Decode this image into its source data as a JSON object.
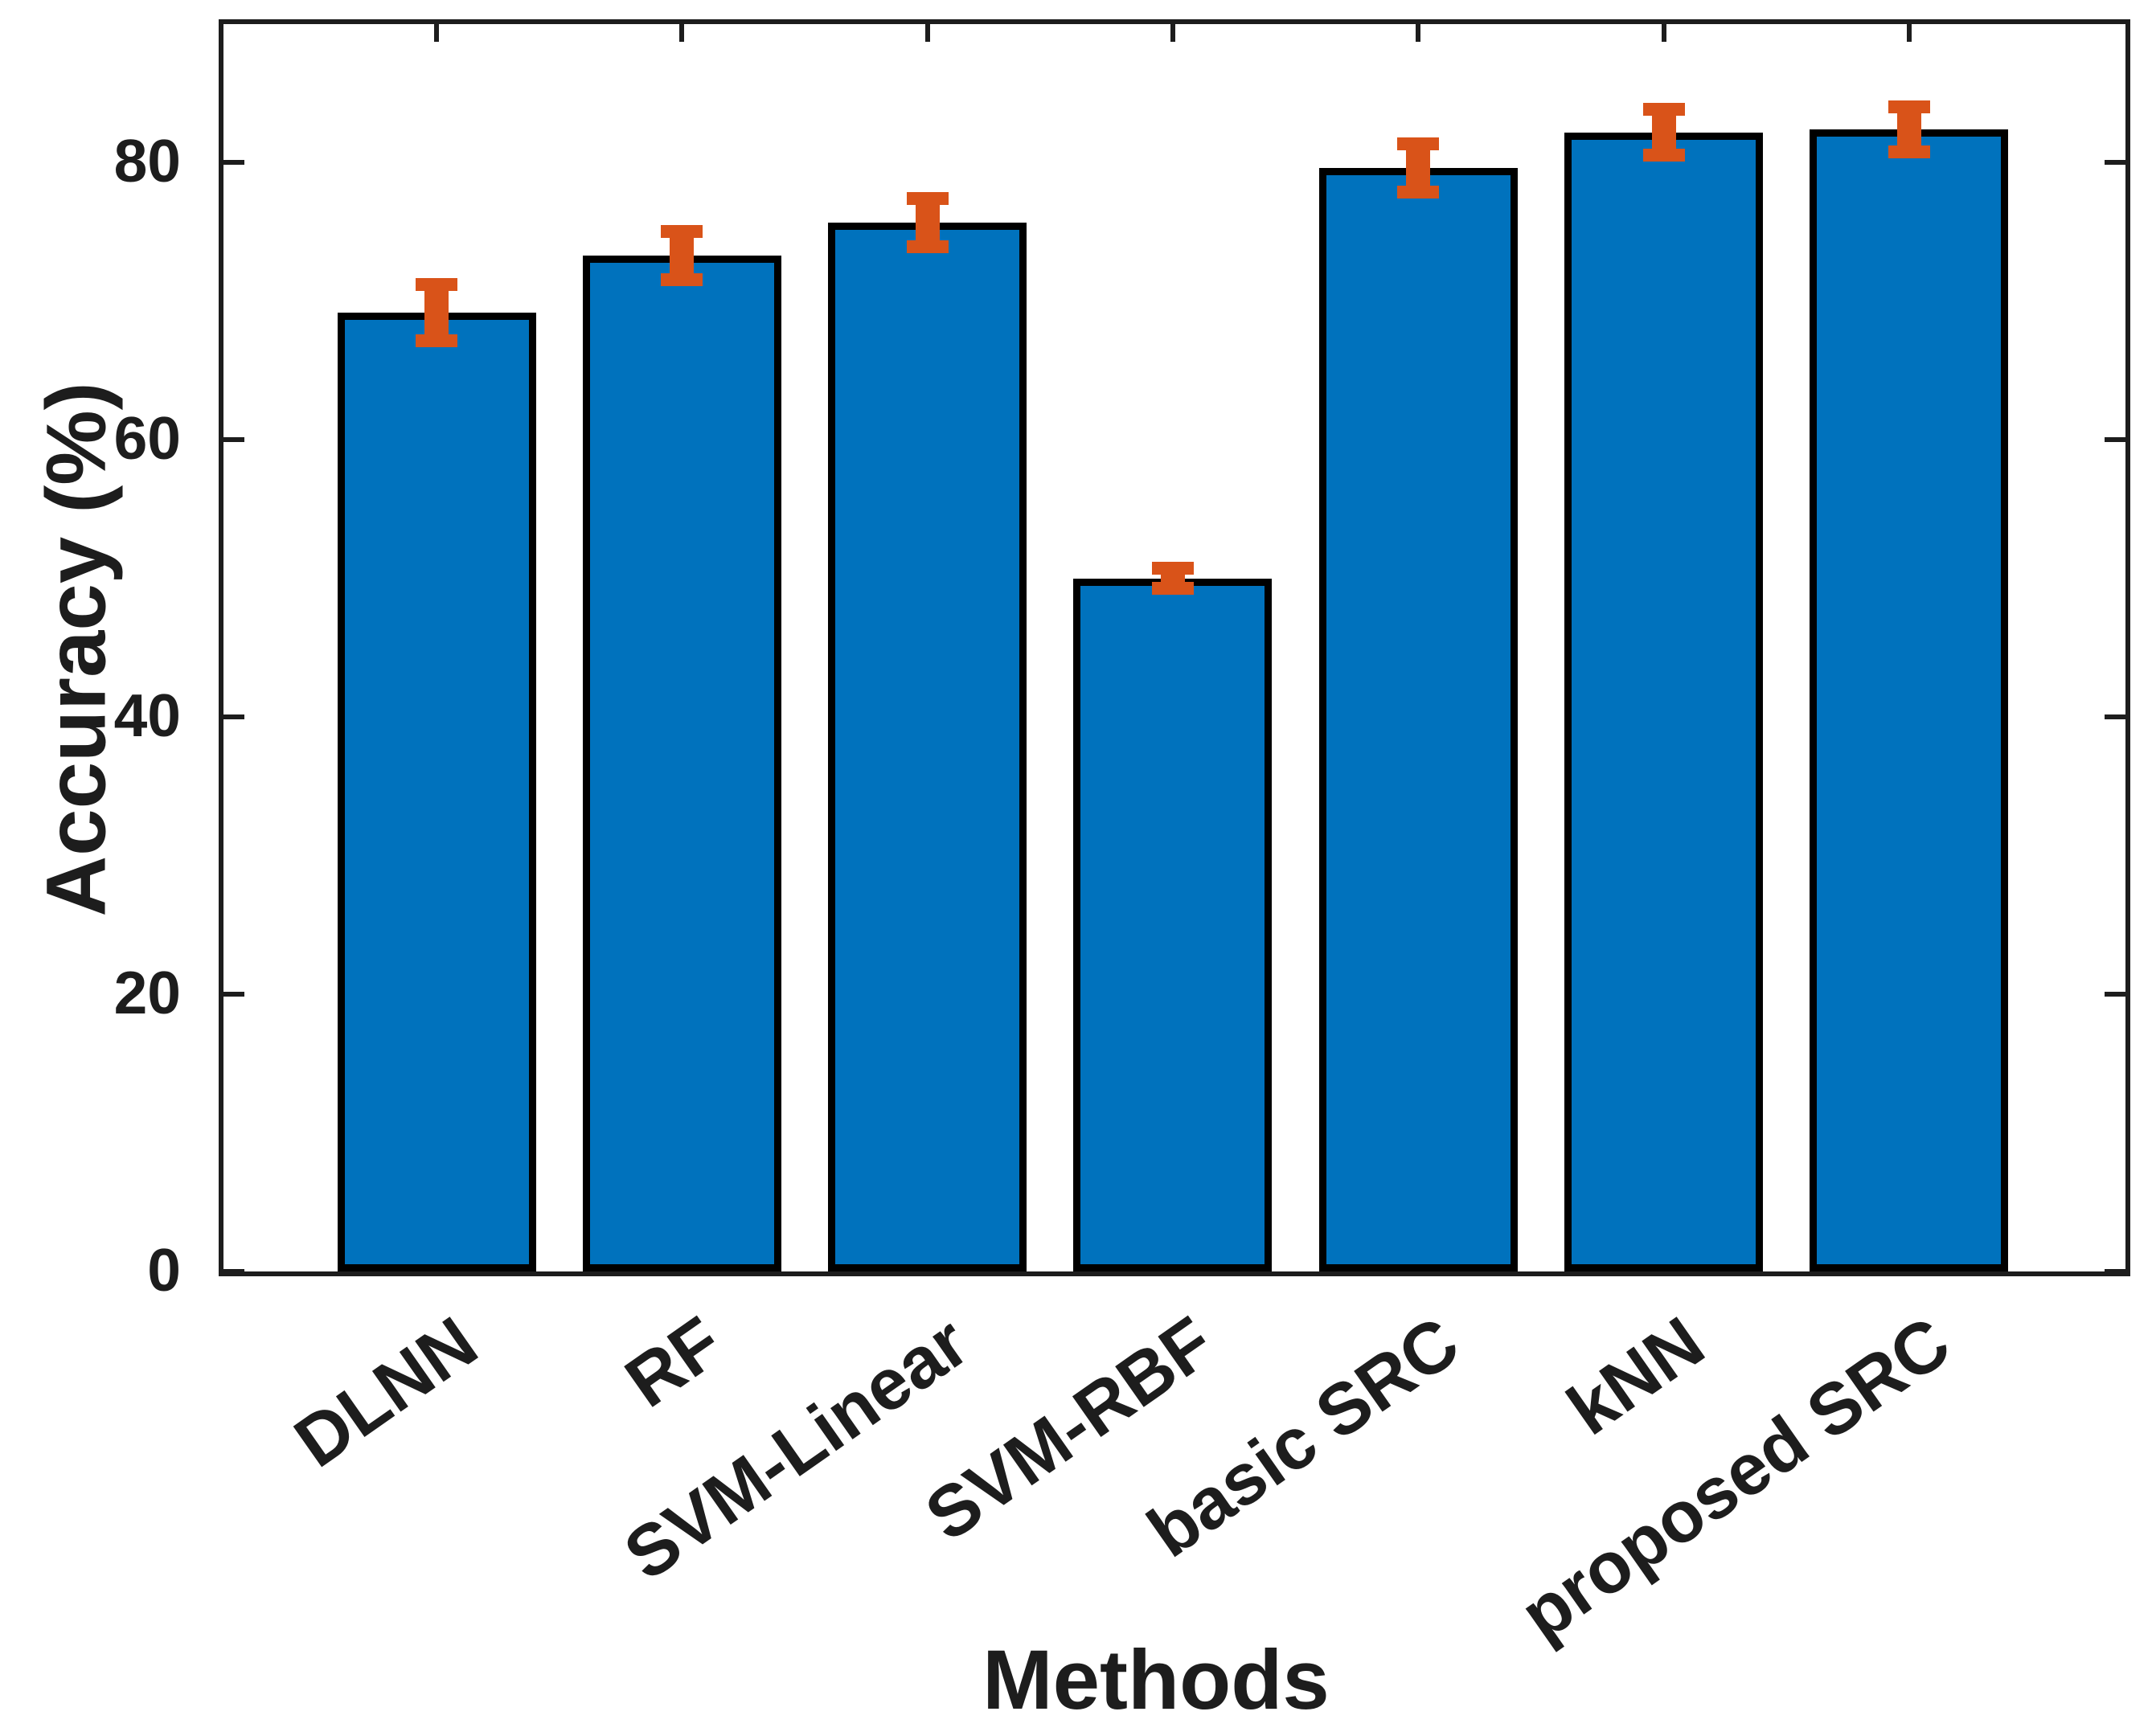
{
  "figure": {
    "background": "#ffffff"
  },
  "chart_data": {
    "type": "bar",
    "title": "",
    "xlabel": "Methods",
    "ylabel": "Accuracy (%)",
    "categories": [
      "DLNN",
      "RF",
      "SVM-Linear",
      "SVM-RBF",
      "basic SRC",
      "kNN",
      "proposed SRC"
    ],
    "values": [
      69.2,
      73.3,
      75.7,
      50.0,
      79.6,
      82.2,
      82.4
    ],
    "errors": [
      2.5,
      2.2,
      2.2,
      1.2,
      2.2,
      2.1,
      2.1
    ],
    "error_style": "both-ends-with-caps",
    "ylim": [
      0,
      90
    ],
    "yticks": [
      0,
      20,
      40,
      60,
      80
    ],
    "grid": false,
    "legend": null,
    "box": true,
    "tick_direction": "in",
    "bar_color": "#0072BD",
    "bar_edge_color": "#000000",
    "error_color": "#D95319",
    "axis_color": "#1d1d1d"
  }
}
